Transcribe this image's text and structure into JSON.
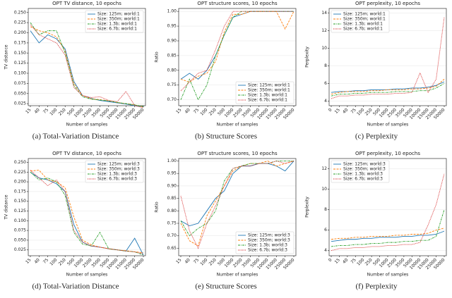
{
  "chart_data": [
    {
      "type": "line",
      "title": "OPT TV distance, 10 epochs",
      "xlabel": "Number of samples",
      "ylabel": "TV distance",
      "caption": "(a) Total-Variation Distance",
      "legend": "upper right",
      "categories": [
        "15",
        "40",
        "75",
        "100",
        "250",
        "500",
        "1000",
        "2500",
        "3500",
        "5000",
        "10000",
        "15000",
        "25000",
        "50000"
      ],
      "ylim": [
        0.02,
        0.26
      ],
      "yticks": [
        {
          "value": 0.025,
          "label": "0.025"
        },
        {
          "value": 0.05,
          "label": "0.050"
        },
        {
          "value": 0.075,
          "label": "0.075"
        },
        {
          "value": 0.1,
          "label": "0.100"
        },
        {
          "value": 0.125,
          "label": "0.125"
        },
        {
          "value": 0.15,
          "label": "0.150"
        },
        {
          "value": 0.175,
          "label": "0.175"
        },
        {
          "value": 0.2,
          "label": "0.200"
        },
        {
          "value": 0.225,
          "label": "0.225"
        },
        {
          "value": 0.25,
          "label": "0.250"
        }
      ],
      "series": [
        {
          "name": "Size: 125m; world:1",
          "color": "#1f77b4",
          "style": "solid",
          "values": [
            0.205,
            0.175,
            0.195,
            0.185,
            0.16,
            0.08,
            0.045,
            0.038,
            0.033,
            0.03,
            0.027,
            0.024,
            0.02,
            0.017
          ]
        },
        {
          "name": "Size: 350m; world:1",
          "color": "#ff7f0e",
          "style": "dashed",
          "values": [
            0.215,
            0.205,
            0.2,
            0.19,
            0.155,
            0.075,
            0.045,
            0.037,
            0.035,
            0.032,
            0.028,
            0.025,
            0.022,
            0.017
          ]
        },
        {
          "name": "Size: 1.3b; world:1",
          "color": "#2ca02c",
          "style": "dashdot",
          "values": [
            0.225,
            0.195,
            0.205,
            0.205,
            0.15,
            0.07,
            0.042,
            0.036,
            0.034,
            0.032,
            0.028,
            0.025,
            0.022,
            0.018
          ]
        },
        {
          "name": "Size: 6.7b; world:1",
          "color": "#d62728",
          "style": "dotted",
          "values": [
            0.22,
            0.195,
            0.185,
            0.175,
            0.145,
            0.065,
            0.045,
            0.04,
            0.042,
            0.033,
            0.03,
            0.055,
            0.02,
            0.015
          ]
        }
      ]
    },
    {
      "type": "line",
      "title": "OPT structure scores, 10 epochs",
      "xlabel": "Number of samples",
      "ylabel": "Ratio",
      "caption": "(b) Structure Scores",
      "legend": "lower right",
      "categories": [
        "15",
        "40",
        "75",
        "100",
        "250",
        "500",
        "1000",
        "2500",
        "3500",
        "5000",
        "10000",
        "15000",
        "25000",
        "50000"
      ],
      "ylim": [
        0.68,
        1.01
      ],
      "yticks": [
        {
          "value": 0.7,
          "label": "0.70"
        },
        {
          "value": 0.75,
          "label": "0.75"
        },
        {
          "value": 0.8,
          "label": "0.80"
        },
        {
          "value": 0.85,
          "label": "0.85"
        },
        {
          "value": 0.9,
          "label": "0.90"
        },
        {
          "value": 0.95,
          "label": "0.95"
        },
        {
          "value": 1,
          "label": "1.00"
        }
      ],
      "series": [
        {
          "name": "Size: 125m; world:1",
          "color": "#1f77b4",
          "style": "solid",
          "values": [
            0.77,
            0.79,
            0.77,
            0.8,
            0.85,
            0.92,
            0.98,
            0.99,
            1,
            1,
            1,
            1,
            1,
            1
          ]
        },
        {
          "name": "Size: 350m; world:1",
          "color": "#ff7f0e",
          "style": "dashed",
          "values": [
            0.77,
            0.76,
            0.78,
            0.79,
            0.83,
            0.93,
            0.99,
            0.99,
            1,
            1,
            1,
            1,
            0.94,
            1
          ]
        },
        {
          "name": "Size: 1.3b; world:1",
          "color": "#2ca02c",
          "style": "dashdot",
          "values": [
            0.7,
            0.77,
            0.7,
            0.75,
            0.85,
            0.92,
            0.98,
            1,
            1,
            1,
            1,
            1,
            1,
            1
          ]
        },
        {
          "name": "Size: 6.7b; world:1",
          "color": "#d62728",
          "style": "dotted",
          "values": [
            0.73,
            0.76,
            0.79,
            0.8,
            0.87,
            0.95,
            1,
            1,
            1,
            1,
            1,
            1,
            1,
            1
          ]
        }
      ]
    },
    {
      "type": "line",
      "title": "OPT perplexity, 10 epochs",
      "xlabel": "Number of samples",
      "ylabel": "Perplexity",
      "caption": "(c) Perplexity",
      "legend": "upper left",
      "categories": [
        "0",
        "15",
        "40",
        "75",
        "100",
        "250",
        "500",
        "1000",
        "2500",
        "3500",
        "5000",
        "10000",
        "15000",
        "25000",
        "50000"
      ],
      "ylim": [
        3.5,
        14.5
      ],
      "yticks": [
        4,
        6,
        8,
        10,
        12,
        14
      ],
      "series": [
        {
          "name": "Size: 125m; world:1",
          "color": "#1f77b4",
          "style": "solid",
          "values": [
            5.0,
            5.1,
            5.1,
            5.2,
            5.2,
            5.3,
            5.3,
            5.3,
            5.4,
            5.4,
            5.5,
            5.5,
            5.6,
            5.8,
            6.2
          ]
        },
        {
          "name": "Size: 350m; world:1",
          "color": "#ff7f0e",
          "style": "dashed",
          "values": [
            4.8,
            5.0,
            5.1,
            5.1,
            5.1,
            5.2,
            5.2,
            5.3,
            5.3,
            5.3,
            5.4,
            5.4,
            5.5,
            5.7,
            6.5
          ]
        },
        {
          "name": "Size: 1.3b; world:1",
          "color": "#2ca02c",
          "style": "dashdot",
          "values": [
            4.6,
            4.8,
            4.8,
            4.9,
            4.9,
            5.0,
            5.0,
            5.0,
            5.1,
            5.1,
            5.1,
            5.2,
            5.2,
            5.5,
            6.0
          ]
        },
        {
          "name": "Size: 6.7b; world:1",
          "color": "#d62728",
          "style": "dotted",
          "values": [
            4.3,
            4.6,
            4.6,
            4.7,
            4.7,
            4.8,
            4.8,
            4.8,
            4.9,
            4.9,
            5.0,
            7.2,
            5.0,
            6.5,
            13.5
          ]
        }
      ]
    },
    {
      "type": "line",
      "title": "OPT TV distance, 10 epochs",
      "xlabel": "Number of samples",
      "ylabel": "TV distance",
      "caption": "(d) Total-Variation Distance",
      "legend": "upper right",
      "categories": [
        "15",
        "40",
        "75",
        "100",
        "250",
        "500",
        "1000",
        "2500",
        "3500",
        "5000",
        "10000",
        "15000",
        "25000",
        "50000"
      ],
      "ylim": [
        0.01,
        0.26
      ],
      "yticks": [
        {
          "value": 0.025,
          "label": "0.025"
        },
        {
          "value": 0.05,
          "label": "0.050"
        },
        {
          "value": 0.075,
          "label": "0.075"
        },
        {
          "value": 0.1,
          "label": "0.100"
        },
        {
          "value": 0.125,
          "label": "0.125"
        },
        {
          "value": 0.15,
          "label": "0.150"
        },
        {
          "value": 0.175,
          "label": "0.175"
        },
        {
          "value": 0.2,
          "label": "0.200"
        },
        {
          "value": 0.225,
          "label": "0.225"
        },
        {
          "value": 0.25,
          "label": "0.250"
        }
      ],
      "series": [
        {
          "name": "Size: 125m; world:3",
          "color": "#1f77b4",
          "style": "solid",
          "values": [
            0.225,
            0.21,
            0.205,
            0.195,
            0.175,
            0.09,
            0.045,
            0.035,
            0.032,
            0.028,
            0.025,
            0.022,
            0.055,
            0.012
          ]
        },
        {
          "name": "Size: 350m; world:3",
          "color": "#ff7f0e",
          "style": "dashed",
          "values": [
            0.228,
            0.23,
            0.205,
            0.2,
            0.185,
            0.11,
            0.05,
            0.038,
            0.032,
            0.028,
            0.025,
            0.023,
            0.02,
            0.018
          ]
        },
        {
          "name": "Size: 1.3b; world:3",
          "color": "#2ca02c",
          "style": "dashdot",
          "values": [
            0.225,
            0.205,
            0.21,
            0.2,
            0.165,
            0.07,
            0.04,
            0.035,
            0.07,
            0.028,
            0.025,
            0.022,
            0.02,
            0.012
          ]
        },
        {
          "name": "Size: 6.7b; world:3",
          "color": "#d62728",
          "style": "dotted",
          "values": [
            0.23,
            0.21,
            0.19,
            0.205,
            0.175,
            0.075,
            0.045,
            0.035,
            0.032,
            0.028,
            0.025,
            0.022,
            0.02,
            0.015
          ]
        }
      ]
    },
    {
      "type": "line",
      "title": "OPT structure scores, 10 epochs",
      "xlabel": "Number of samples",
      "ylabel": "Ratio",
      "caption": "(e) Structure Scores",
      "legend": "lower right",
      "categories": [
        "15",
        "40",
        "75",
        "100",
        "250",
        "500",
        "1000",
        "2500",
        "3500",
        "5000",
        "10000",
        "15000",
        "25000",
        "50000"
      ],
      "ylim": [
        0.62,
        1.01
      ],
      "yticks": [
        {
          "value": 0.65,
          "label": "0.65"
        },
        {
          "value": 0.7,
          "label": "0.70"
        },
        {
          "value": 0.75,
          "label": "0.75"
        },
        {
          "value": 0.8,
          "label": "0.80"
        },
        {
          "value": 0.85,
          "label": "0.85"
        },
        {
          "value": 0.9,
          "label": "0.90"
        },
        {
          "value": 0.95,
          "label": "0.95"
        },
        {
          "value": 1,
          "label": "1.00"
        }
      ],
      "series": [
        {
          "name": "Size: 125m; world:3",
          "color": "#1f77b4",
          "style": "solid",
          "values": [
            0.76,
            0.74,
            0.75,
            0.8,
            0.85,
            0.88,
            0.95,
            0.98,
            0.98,
            0.99,
            0.99,
            0.98,
            0.96,
            1
          ]
        },
        {
          "name": "Size: 350m; world:3",
          "color": "#ff7f0e",
          "style": "dashed",
          "values": [
            0.75,
            0.68,
            0.66,
            0.78,
            0.84,
            0.9,
            0.96,
            0.98,
            0.99,
            0.99,
            1,
            0.98,
            0.99,
            1
          ]
        },
        {
          "name": "Size: 1.3b; world:3",
          "color": "#2ca02c",
          "style": "dashdot",
          "values": [
            0.76,
            0.7,
            0.73,
            0.75,
            0.8,
            0.92,
            0.97,
            0.98,
            0.99,
            0.99,
            0.99,
            1,
            1,
            1
          ]
        },
        {
          "name": "Size: 6.7b; world:3",
          "color": "#d62728",
          "style": "dotted",
          "values": [
            0.86,
            0.72,
            0.65,
            0.75,
            0.82,
            0.9,
            0.97,
            0.98,
            0.98,
            0.99,
            0.99,
            1,
            0.99,
            1
          ]
        }
      ]
    },
    {
      "type": "line",
      "title": "OPT perplexity, 10 epochs",
      "xlabel": "Number of samples",
      "ylabel": "Perplexity",
      "caption": "(f) Perplexity",
      "legend": "upper left",
      "categories": [
        "0",
        "15",
        "40",
        "75",
        "100",
        "250",
        "500",
        "1000",
        "2500",
        "3500",
        "5000",
        "10000",
        "15000",
        "25000",
        "50000"
      ],
      "ylim": [
        3.5,
        13
      ],
      "yticks": [
        4,
        6,
        8,
        10,
        12
      ],
      "series": [
        {
          "name": "Size: 125m; world:3",
          "color": "#1f77b4",
          "style": "solid",
          "values": [
            4.9,
            5.0,
            5.1,
            5.1,
            5.2,
            5.2,
            5.3,
            5.3,
            5.3,
            5.4,
            5.4,
            5.5,
            5.5,
            5.6,
            5.9
          ]
        },
        {
          "name": "Size: 350m; world:3",
          "color": "#ff7f0e",
          "style": "dashed",
          "values": [
            5.1,
            5.2,
            5.2,
            5.3,
            5.3,
            5.4,
            5.4,
            5.4,
            5.5,
            5.5,
            5.6,
            5.6,
            5.7,
            6.0,
            6.2
          ]
        },
        {
          "name": "Size: 1.3b; world:3",
          "color": "#2ca02c",
          "style": "dashdot",
          "values": [
            4.4,
            4.5,
            4.5,
            4.6,
            4.6,
            4.7,
            4.7,
            4.8,
            4.8,
            4.9,
            4.9,
            5.0,
            5.0,
            5.4,
            8.0
          ]
        },
        {
          "name": "Size: 6.7b; world:3",
          "color": "#d62728",
          "style": "dotted",
          "values": [
            4.0,
            4.2,
            4.2,
            4.3,
            4.3,
            4.4,
            4.4,
            4.5,
            4.5,
            4.6,
            4.6,
            4.8,
            6.5,
            8.5,
            11.5
          ]
        }
      ]
    }
  ]
}
